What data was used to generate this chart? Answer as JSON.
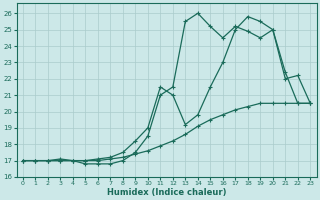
{
  "xlabel": "Humidex (Indice chaleur)",
  "background_color": "#cce8e8",
  "grid_color": "#aacccc",
  "line_color": "#1a6b5a",
  "xlim": [
    -0.5,
    23.5
  ],
  "ylim": [
    16,
    26.6
  ],
  "yticks": [
    16,
    17,
    18,
    19,
    20,
    21,
    22,
    23,
    24,
    25,
    26
  ],
  "xticks": [
    0,
    1,
    2,
    3,
    4,
    5,
    6,
    7,
    8,
    9,
    10,
    11,
    12,
    13,
    14,
    15,
    16,
    17,
    18,
    19,
    20,
    21,
    22,
    23
  ],
  "line1_x": [
    0,
    1,
    2,
    3,
    4,
    5,
    6,
    7,
    8,
    9,
    10,
    11,
    12,
    13,
    14,
    15,
    16,
    17,
    18,
    19,
    20,
    21,
    22,
    23
  ],
  "line1_y": [
    17.0,
    17.0,
    17.0,
    17.1,
    17.0,
    17.0,
    17.1,
    17.2,
    17.5,
    18.2,
    19.0,
    21.5,
    21.0,
    19.2,
    19.8,
    21.5,
    23.0,
    25.0,
    25.8,
    25.5,
    25.0,
    22.0,
    22.2,
    20.5
  ],
  "line2_x": [
    0,
    1,
    2,
    3,
    4,
    5,
    6,
    7,
    8,
    9,
    10,
    11,
    12,
    13,
    14,
    15,
    16,
    17,
    18,
    19,
    20,
    21,
    22,
    23
  ],
  "line2_y": [
    17.0,
    17.0,
    17.0,
    17.0,
    17.0,
    16.8,
    16.8,
    16.8,
    17.0,
    17.5,
    18.5,
    21.0,
    21.5,
    25.5,
    26.0,
    25.2,
    24.5,
    25.2,
    24.9,
    24.5,
    25.0,
    22.4,
    20.5,
    20.5
  ],
  "line3_x": [
    0,
    1,
    2,
    3,
    4,
    5,
    6,
    7,
    8,
    9,
    10,
    11,
    12,
    13,
    14,
    15,
    16,
    17,
    18,
    19,
    20,
    21,
    22,
    23
  ],
  "line3_y": [
    17.0,
    17.0,
    17.0,
    17.0,
    17.0,
    17.0,
    17.0,
    17.1,
    17.2,
    17.4,
    17.6,
    17.9,
    18.2,
    18.6,
    19.1,
    19.5,
    19.8,
    20.1,
    20.3,
    20.5,
    20.5,
    20.5,
    20.5,
    20.5
  ]
}
